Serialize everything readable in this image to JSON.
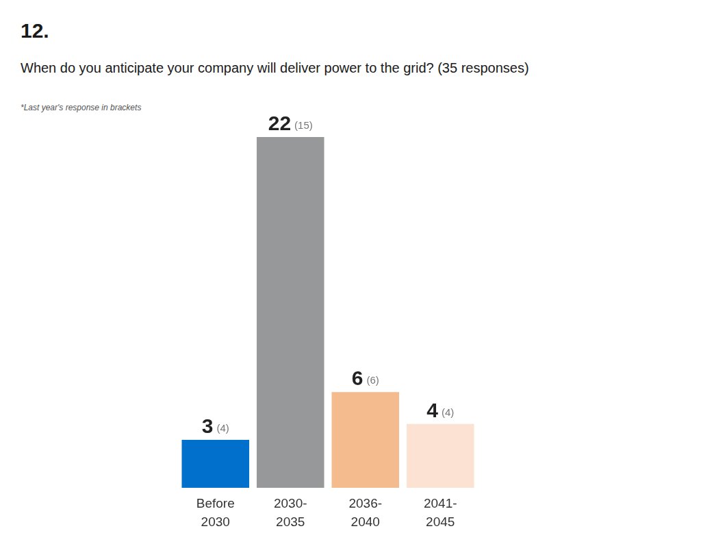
{
  "chart_data": {
    "type": "bar",
    "title": "12.",
    "subtitle": "When do you anticipate your company will deliver power to the grid? (35 responses)",
    "annotation": "*Last year's response in brackets",
    "categories": [
      "Before 2030",
      "2030-2035",
      "2036-2040",
      "2041-2045"
    ],
    "values": [
      3,
      22,
      6,
      4
    ],
    "previous_values": [
      4,
      15,
      6,
      4
    ],
    "previous_value_labels": [
      "(4)",
      "(15)",
      "(6)",
      "(4)"
    ],
    "colors": [
      "#0070cc",
      "#97989a",
      "#f4bb8f",
      "#fbe2d2"
    ],
    "data_labels": true,
    "tick_labels": "x",
    "grid": false
  }
}
